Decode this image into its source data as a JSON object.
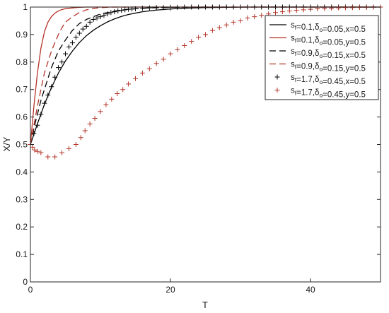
{
  "chart_data": {
    "type": "line",
    "xlabel": "T",
    "ylabel": "X/Y",
    "xlim": [
      0,
      50
    ],
    "ylim": [
      0,
      1
    ],
    "xticks": [
      "0",
      "20",
      "40"
    ],
    "yticks": [
      "0",
      "0.1",
      "0.2",
      "0.3",
      "0.4",
      "0.5",
      "0.6",
      "0.7",
      "0.8",
      "0.9",
      "1"
    ],
    "grid": false,
    "legend_position": "top-right",
    "series": [
      {
        "name": "s_f=0.1, δ_o=0.05, x=0.5",
        "legend": {
          "base": "s",
          "sub1": "f",
          "part1": "=0.1,",
          "greek": "δ",
          "sub2": "o",
          "part2": "=0.05,x=0.5"
        },
        "style": "solid",
        "color": "#000000",
        "x": [
          0,
          1,
          2,
          3,
          4,
          5,
          6,
          7,
          8,
          9,
          10,
          11,
          12,
          13,
          14,
          15,
          16,
          18,
          20,
          22,
          25,
          28,
          31,
          35,
          40,
          45,
          50
        ],
        "y": [
          0.5,
          0.575,
          0.646,
          0.707,
          0.76,
          0.804,
          0.84,
          0.871,
          0.896,
          0.916,
          0.932,
          0.946,
          0.957,
          0.966,
          0.973,
          0.978,
          0.983,
          0.989,
          0.993,
          0.996,
          0.998,
          0.999,
          1.0,
          1.0,
          1.0,
          1.0,
          1.0
        ]
      },
      {
        "name": "s_f=0.1, δ_o=0.05, y=0.5",
        "legend": {
          "base": "s",
          "sub1": "f",
          "part1": "=0.1,",
          "greek": "δ",
          "sub2": "o",
          "part2": "=0.05,y=0.5"
        },
        "style": "solid",
        "color": "#b5352a",
        "x": [
          0,
          0.5,
          1,
          1.5,
          2,
          2.5,
          3,
          3.5,
          4,
          4.5,
          5,
          6,
          7,
          8,
          10,
          12,
          15,
          20,
          30,
          40,
          50
        ],
        "y": [
          0.5,
          0.64,
          0.76,
          0.85,
          0.91,
          0.945,
          0.965,
          0.978,
          0.986,
          0.991,
          0.994,
          0.997,
          0.999,
          1.0,
          1.0,
          1.0,
          1.0,
          1.0,
          1.0,
          1.0,
          1.0
        ]
      },
      {
        "name": "s_f=0.9, δ_o=0.15, x=0.5",
        "legend": {
          "base": "s",
          "sub1": "f",
          "part1": "=0.9,",
          "greek": "δ",
          "sub2": "o",
          "part2": "=0.15,x=0.5"
        },
        "style": "dashed",
        "color": "#000000",
        "x": [
          0,
          0.5,
          1,
          1.5,
          2,
          2.5,
          3,
          3.5,
          4,
          5,
          6,
          7,
          8,
          9,
          10,
          12,
          14,
          17,
          20,
          25,
          30,
          40,
          50
        ],
        "y": [
          0.5,
          0.56,
          0.61,
          0.66,
          0.7,
          0.74,
          0.78,
          0.81,
          0.84,
          0.88,
          0.915,
          0.94,
          0.955,
          0.965,
          0.975,
          0.985,
          0.992,
          0.997,
          0.999,
          1.0,
          1.0,
          1.0,
          1.0
        ]
      },
      {
        "name": "s_f=0.9, δ_o=0.15, y=0.5",
        "legend": {
          "base": "s",
          "sub1": "f",
          "part1": "=0.9,",
          "greek": "δ",
          "sub2": "o",
          "part2": "=0.15,y=0.5"
        },
        "style": "dashed",
        "color": "#b5352a",
        "x": [
          0,
          0.5,
          1,
          1.5,
          2,
          2.5,
          3,
          3.5,
          4,
          4.5,
          5,
          6,
          7,
          8,
          9,
          10,
          12,
          15,
          20,
          30,
          40,
          50
        ],
        "y": [
          0.5,
          0.57,
          0.64,
          0.7,
          0.76,
          0.8,
          0.84,
          0.87,
          0.9,
          0.925,
          0.945,
          0.965,
          0.98,
          0.99,
          0.995,
          0.998,
          1.0,
          1.0,
          1.0,
          1.0,
          1.0,
          1.0
        ]
      },
      {
        "name": "s_f=1.7, δ_o=0.45, x=0.5",
        "legend": {
          "base": "s",
          "sub1": "f",
          "part1": "=1.7,",
          "greek": "δ",
          "sub2": "o",
          "part2": "=0.45,x=0.5"
        },
        "style": "marker",
        "color": "#000000",
        "x": [
          0,
          0.5,
          1,
          1.5,
          2,
          2.5,
          3,
          3.5,
          4,
          4.5,
          5,
          5.5,
          6,
          6.5,
          7,
          7.5,
          8,
          8.5,
          9,
          9.5,
          10,
          10.5,
          11,
          11.5,
          12,
          12.5,
          13,
          13.5,
          14,
          14.5,
          15,
          16,
          17,
          18,
          19,
          20,
          21,
          22,
          23,
          24,
          25,
          26,
          27,
          28,
          29,
          30,
          31,
          32,
          33,
          34,
          35,
          36,
          37,
          38,
          39,
          40,
          41,
          42,
          43,
          44,
          45,
          46,
          47,
          48,
          49,
          50
        ],
        "y": [
          0.5,
          0.54,
          0.57,
          0.61,
          0.65,
          0.68,
          0.71,
          0.745,
          0.78,
          0.8,
          0.83,
          0.855,
          0.87,
          0.89,
          0.905,
          0.92,
          0.93,
          0.945,
          0.955,
          0.96,
          0.965,
          0.97,
          0.975,
          0.98,
          0.983,
          0.986,
          0.988,
          0.99,
          0.992,
          0.993,
          0.994,
          0.996,
          0.997,
          0.998,
          0.998,
          0.999,
          0.999,
          1.0,
          1.0,
          1.0,
          1.0,
          1.0,
          1.0,
          1.0,
          1.0,
          1.0,
          1.0,
          1.0,
          1.0,
          1.0,
          1.0,
          1.0,
          1.0,
          1.0,
          1.0,
          1.0,
          1.0,
          1.0,
          1.0,
          1.0,
          1.0,
          1.0,
          1.0,
          1.0,
          1.0,
          1.0
        ]
      },
      {
        "name": "s_f=1.7, δ_o=0.45, y=0.5",
        "legend": {
          "base": "s",
          "sub1": "f",
          "part1": "=1.7,",
          "greek": "δ",
          "sub2": "o",
          "part2": "=0.45,y=0.5"
        },
        "style": "marker",
        "color": "#b5352a",
        "x": [
          0,
          0.3,
          0.6,
          1,
          1.5,
          2.5,
          3.5,
          4.5,
          5.5,
          6.5,
          7.2,
          7.8,
          8.5,
          9.2,
          10,
          10.8,
          11.6,
          12.4,
          13.2,
          14,
          15,
          16,
          17,
          18,
          19,
          20,
          21,
          22,
          23,
          24,
          25,
          26,
          27,
          28,
          29,
          30,
          31,
          32,
          33,
          34,
          35,
          36,
          37,
          38,
          39,
          40,
          41,
          42,
          43,
          44,
          45,
          46,
          47,
          48,
          49,
          50
        ],
        "y": [
          0.5,
          0.49,
          0.48,
          0.475,
          0.47,
          0.455,
          0.455,
          0.47,
          0.485,
          0.5,
          0.525,
          0.55,
          0.575,
          0.595,
          0.62,
          0.645,
          0.665,
          0.685,
          0.7,
          0.72,
          0.74,
          0.76,
          0.775,
          0.795,
          0.81,
          0.83,
          0.845,
          0.86,
          0.875,
          0.89,
          0.9,
          0.915,
          0.925,
          0.935,
          0.945,
          0.95,
          0.96,
          0.965,
          0.97,
          0.975,
          0.98,
          0.983,
          0.986,
          0.988,
          0.99,
          0.992,
          0.994,
          0.995,
          0.996,
          0.997,
          0.998,
          0.998,
          0.999,
          0.999,
          1.0,
          1.0
        ]
      }
    ]
  }
}
